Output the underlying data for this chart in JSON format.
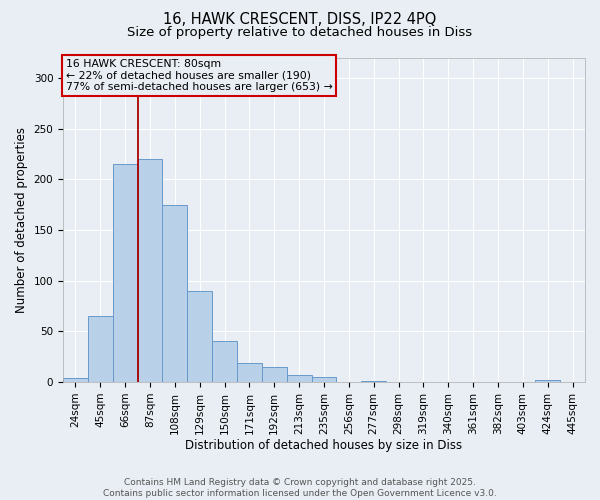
{
  "title_line1": "16, HAWK CRESCENT, DISS, IP22 4PQ",
  "title_line2": "Size of property relative to detached houses in Diss",
  "xlabel": "Distribution of detached houses by size in Diss",
  "ylabel": "Number of detached properties",
  "categories": [
    "24sqm",
    "45sqm",
    "66sqm",
    "87sqm",
    "108sqm",
    "129sqm",
    "150sqm",
    "171sqm",
    "192sqm",
    "213sqm",
    "235sqm",
    "256sqm",
    "277sqm",
    "298sqm",
    "319sqm",
    "340sqm",
    "361sqm",
    "382sqm",
    "403sqm",
    "424sqm",
    "445sqm"
  ],
  "values": [
    4,
    65,
    215,
    220,
    175,
    90,
    41,
    19,
    15,
    7,
    5,
    0,
    1,
    0,
    0,
    0,
    0,
    0,
    0,
    2,
    0
  ],
  "bar_color": "#b8d0e8",
  "bar_edge_color": "#6699cc",
  "annotation_title": "16 HAWK CRESCENT: 80sqm",
  "annotation_line2": "← 22% of detached houses are smaller (190)",
  "annotation_line3": "77% of semi-detached houses are larger (653) →",
  "vline_index": 2.5,
  "vline_color": "#aa0000",
  "annotation_box_edge_color": "#cc0000",
  "background_color": "#e8eef4",
  "plot_bg_color": "#e8eef4",
  "grid_color": "#ffffff",
  "ylim": [
    0,
    320
  ],
  "yticks": [
    0,
    50,
    100,
    150,
    200,
    250,
    300
  ],
  "footer_line1": "Contains HM Land Registry data © Crown copyright and database right 2025.",
  "footer_line2": "Contains public sector information licensed under the Open Government Licence v3.0.",
  "title_fontsize": 10.5,
  "subtitle_fontsize": 9.5,
  "axis_label_fontsize": 8.5,
  "tick_fontsize": 7.5,
  "annotation_fontsize": 7.8,
  "footer_fontsize": 6.5
}
